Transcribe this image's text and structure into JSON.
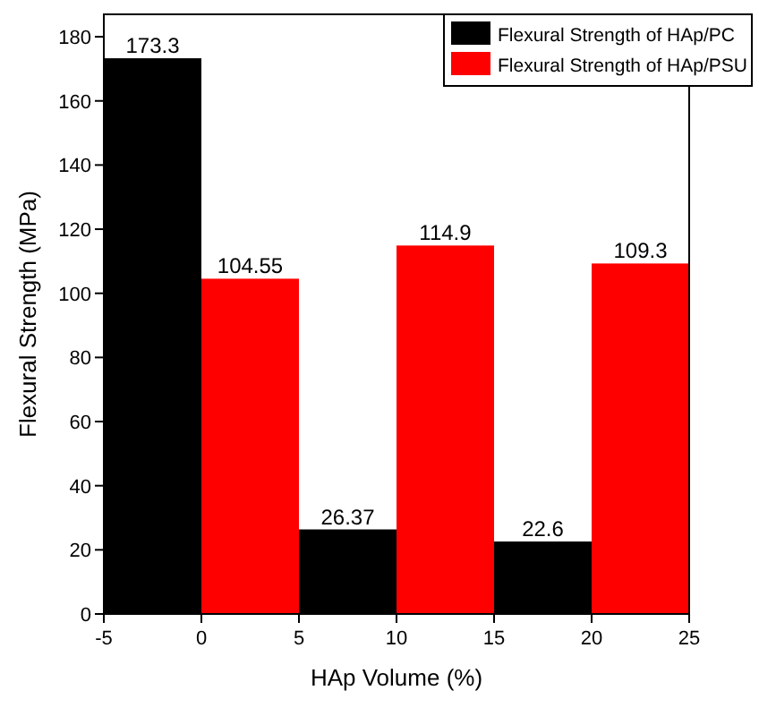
{
  "chart_data": {
    "type": "bar",
    "xlabel": "HAp Volume (%)",
    "ylabel": "Flexural Strength (MPa)",
    "x": [
      0,
      10,
      20
    ],
    "xlim": [
      -5,
      25
    ],
    "xticks": [
      -5,
      0,
      5,
      10,
      15,
      20,
      25
    ],
    "ylim": [
      0,
      187
    ],
    "yticks": [
      0,
      20,
      40,
      60,
      80,
      100,
      120,
      140,
      160,
      180
    ],
    "series": [
      {
        "name": "Flexural Strength of HAp/PC",
        "color": "#000000",
        "values": [
          173.3,
          26.37,
          22.6
        ]
      },
      {
        "name": "Flexural Strength of HAp/PSU",
        "color": "#ff0000",
        "values": [
          104.55,
          114.9,
          109.3
        ]
      }
    ],
    "data_labels": true,
    "legend": "top right",
    "grid": false
  }
}
